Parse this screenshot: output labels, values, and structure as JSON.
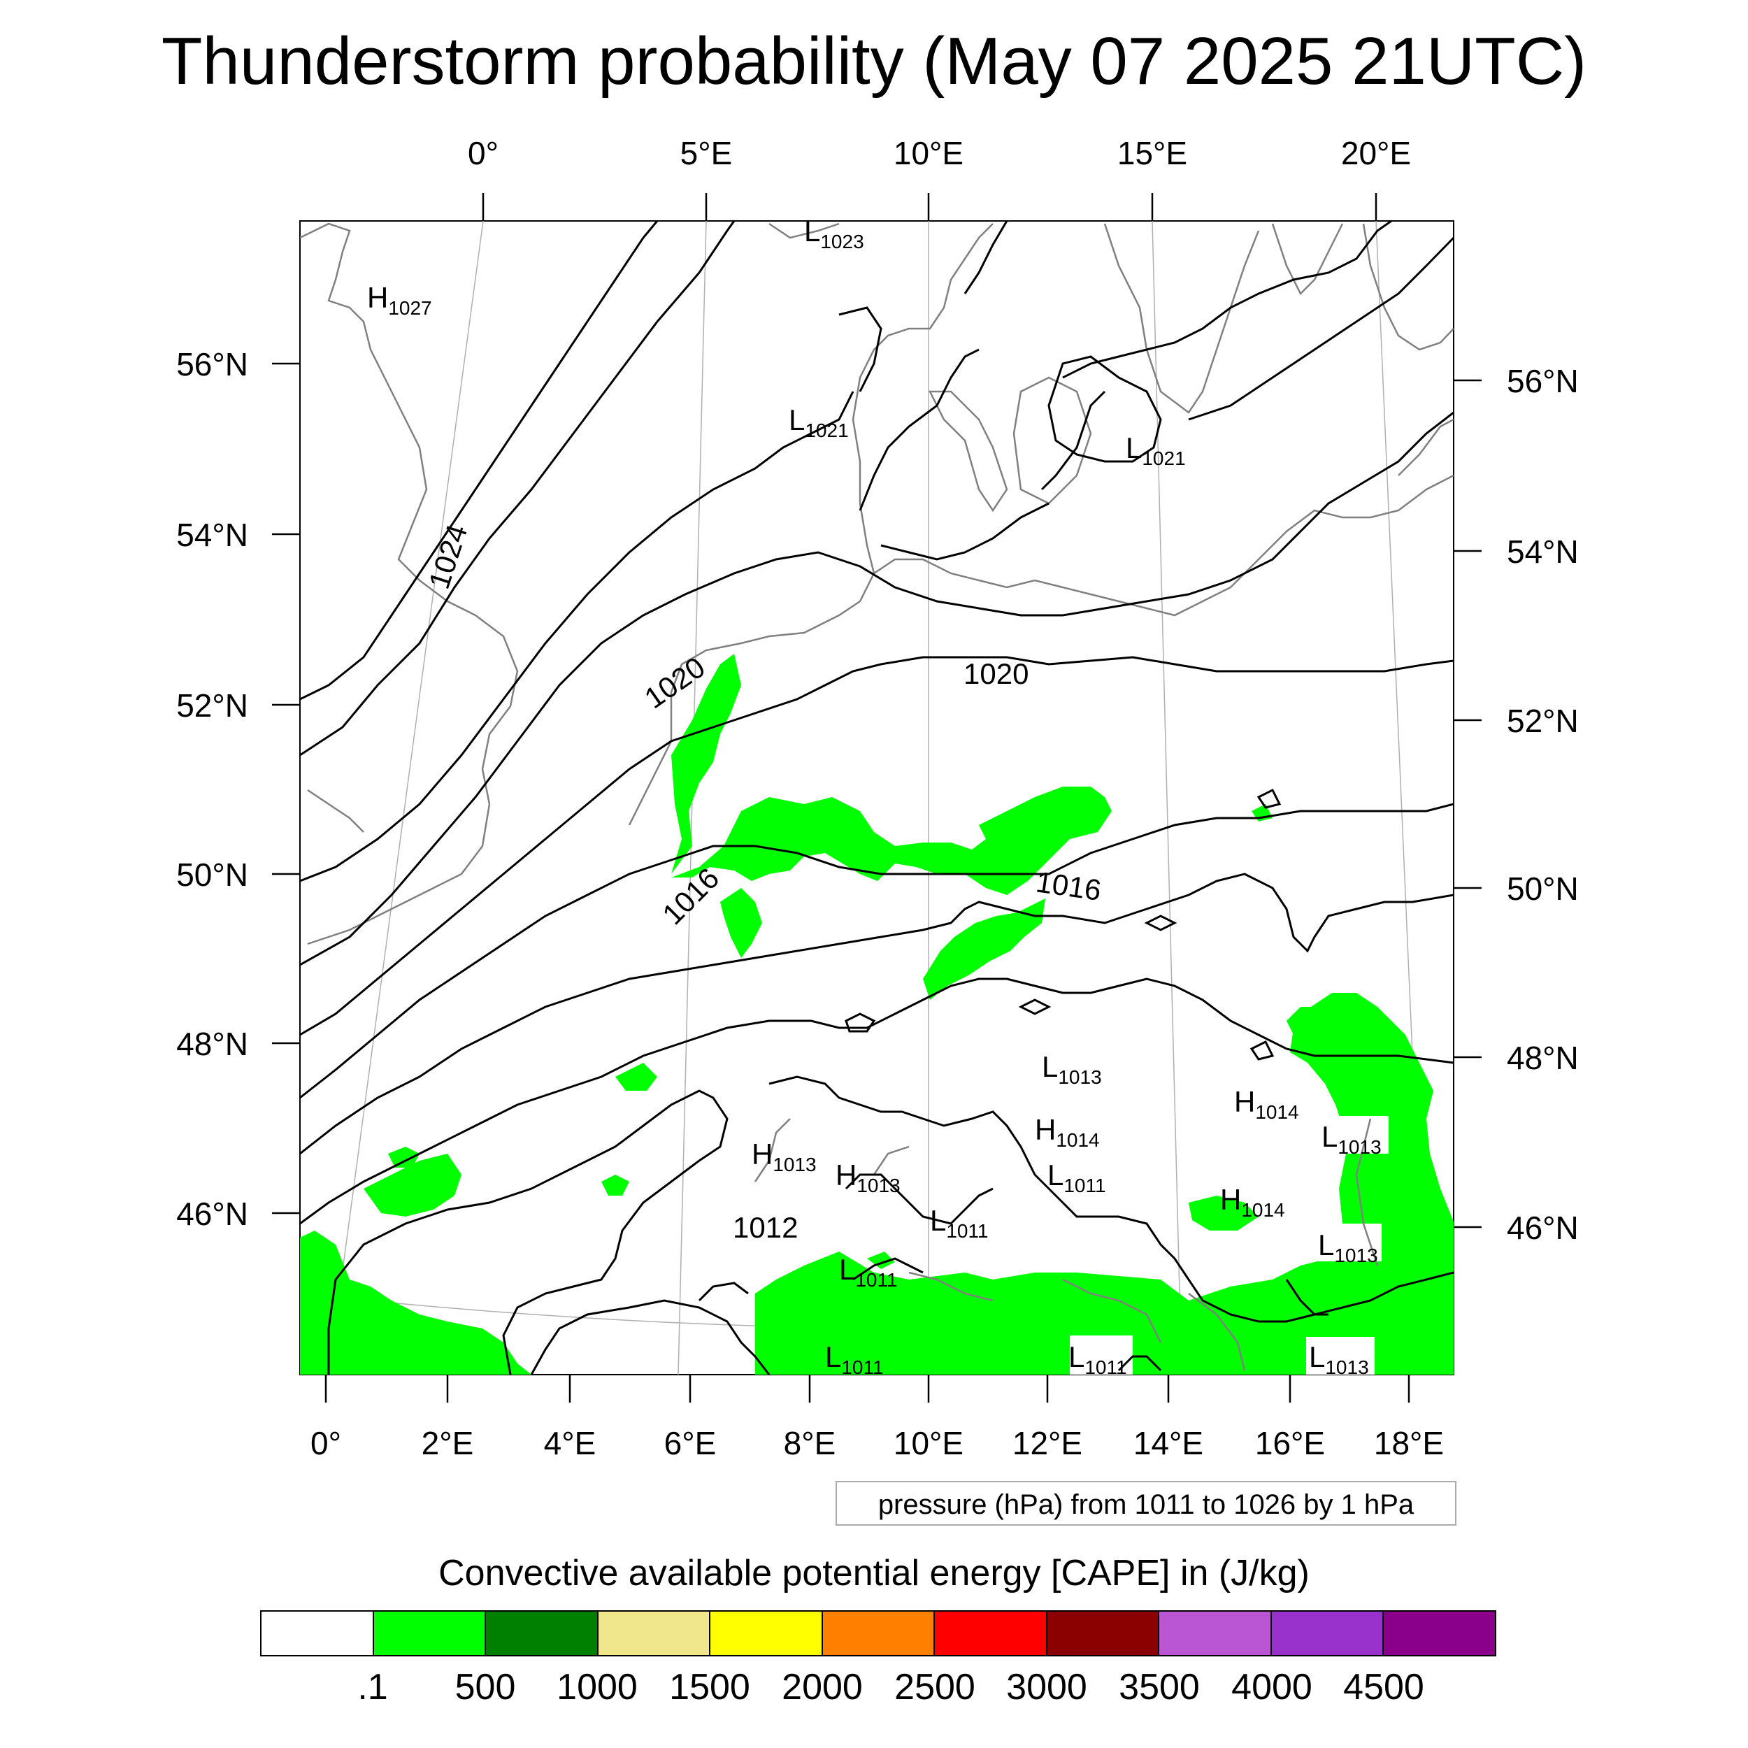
{
  "title": "Thunderstorm probability (May 07 2025 21UTC)",
  "top_axis_labels": [
    "0°",
    "5°E",
    "10°E",
    "15°E",
    "20°E"
  ],
  "bottom_axis_labels": [
    "0°",
    "2°E",
    "4°E",
    "6°E",
    "8°E",
    "10°E",
    "12°E",
    "14°E",
    "16°E",
    "18°E"
  ],
  "left_axis_labels": [
    "56°N",
    "54°N",
    "52°N",
    "50°N",
    "48°N",
    "46°N"
  ],
  "right_axis_labels": [
    "56°N",
    "54°N",
    "52°N",
    "50°N",
    "48°N",
    "46°N"
  ],
  "pressure_centers": [
    {
      "type": "H",
      "value": "1027"
    },
    {
      "type": "L",
      "value": "1023"
    },
    {
      "type": "L",
      "value": "1021"
    },
    {
      "type": "L",
      "value": "1021"
    },
    {
      "type": "L",
      "value": "1013"
    },
    {
      "type": "H",
      "value": "1014"
    },
    {
      "type": "H",
      "value": "1014"
    },
    {
      "type": "L",
      "value": "1013"
    },
    {
      "type": "H",
      "value": "1013"
    },
    {
      "type": "H",
      "value": "1013"
    },
    {
      "type": "L",
      "value": "1011"
    },
    {
      "type": "L",
      "value": "1011"
    },
    {
      "type": "L",
      "value": "1011"
    },
    {
      "type": "H",
      "value": "1014"
    },
    {
      "type": "L",
      "value": "1013"
    },
    {
      "type": "L",
      "value": "1011"
    },
    {
      "type": "L",
      "value": "1011"
    },
    {
      "type": "L",
      "value": "1013"
    }
  ],
  "isobar_labels": [
    "1024",
    "1020",
    "1020",
    "1016",
    "1016",
    "1012"
  ],
  "contour_info": "pressure (hPa) from 1011 to 1026 by 1 hPa",
  "colorbar": {
    "title": "Convective available potential energy [CAPE] in (J/kg)",
    "colors": [
      "#ffffff",
      "#00ff00",
      "#008000",
      "#f0e68c",
      "#ffff00",
      "#ff8000",
      "#ff0000",
      "#8b0000",
      "#ba55d3",
      "#9932cc",
      "#8b008b"
    ],
    "tick_labels": [
      ".1",
      "500",
      "1000",
      "1500",
      "2000",
      "2500",
      "3000",
      "3500",
      "4000",
      "4500"
    ]
  }
}
